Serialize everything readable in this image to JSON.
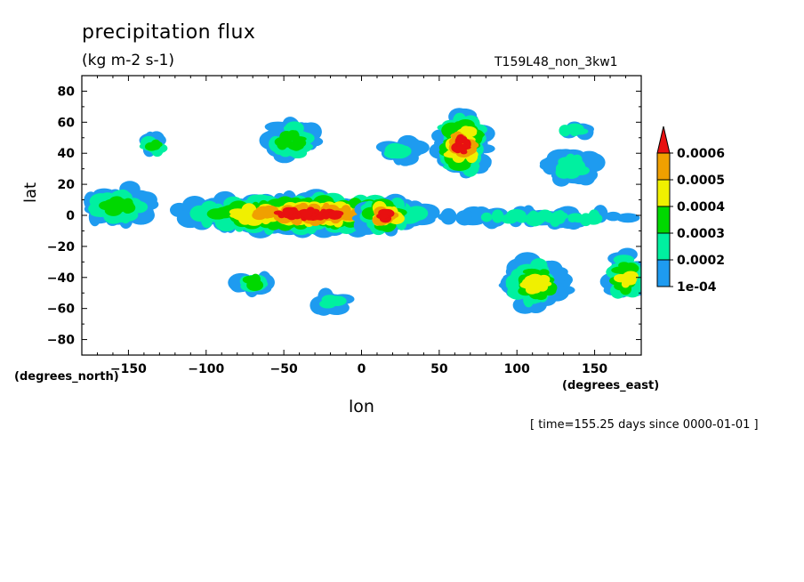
{
  "chart_data": {
    "type": "heatmap",
    "title": "precipitation flux",
    "subtitle": "(kg m-2 s-1)",
    "run_label": "T159L48_non_3kw1",
    "xlabel": "lon",
    "ylabel": "lat",
    "x_unit_label": "(degrees_east)",
    "y_unit_label": "(degrees_north)",
    "timestamp": "[ time=155.25 days since 0000-01-01 ]",
    "xlim": [
      -180,
      180
    ],
    "ylim": [
      -90,
      90
    ],
    "x_ticks": [
      -150,
      -100,
      -50,
      0,
      50,
      100,
      150
    ],
    "y_ticks": [
      80,
      60,
      40,
      20,
      0,
      -20,
      -40,
      -60,
      -80
    ],
    "legend_placement": "right",
    "colorbar": {
      "levels": [
        "1e-04",
        "0.0002",
        "0.0003",
        "0.0004",
        "0.0005",
        "0.0006"
      ],
      "colors": [
        "#1e9bf0",
        "#00f0a0",
        "#00d800",
        "#f0f000",
        "#f0a000",
        "#e81010"
      ]
    },
    "features": [
      {
        "lon_min": -180,
        "lon_max": -135,
        "lat_min": -4,
        "lat_max": 18,
        "level": 3
      },
      {
        "lon_min": -120,
        "lon_max": 50,
        "lat_min": -10,
        "lat_max": 12,
        "level": 6
      },
      {
        "lon_min": 0,
        "lon_max": 30,
        "lat_min": -10,
        "lat_max": 10,
        "level": 6
      },
      {
        "lon_min": 50,
        "lon_max": 180,
        "lat_min": -5,
        "lat_max": 2,
        "level": 2
      },
      {
        "lon_min": 50,
        "lon_max": 80,
        "lat_min": 25,
        "lat_max": 65,
        "level": 6
      },
      {
        "lon_min": -60,
        "lon_max": -30,
        "lat_min": 35,
        "lat_max": 60,
        "level": 3
      },
      {
        "lon_min": 15,
        "lon_max": 35,
        "lat_min": 35,
        "lat_max": 50,
        "level": 2
      },
      {
        "lon_min": -140,
        "lon_max": -125,
        "lat_min": 40,
        "lat_max": 50,
        "level": 3
      },
      {
        "lon_min": 95,
        "lon_max": 130,
        "lat_min": -60,
        "lat_max": -28,
        "level": 4
      },
      {
        "lon_min": 160,
        "lon_max": 180,
        "lat_min": -55,
        "lat_max": -25,
        "level": 4
      },
      {
        "lon_min": -30,
        "lon_max": -10,
        "lat_min": -60,
        "lat_max": -52,
        "level": 2
      },
      {
        "lon_min": -80,
        "lon_max": -60,
        "lat_min": -48,
        "lat_max": -38,
        "level": 3
      },
      {
        "lon_min": 120,
        "lon_max": 150,
        "lat_min": 22,
        "lat_max": 40,
        "level": 2
      },
      {
        "lon_min": 125,
        "lon_max": 150,
        "lat_min": 52,
        "lat_max": 58,
        "level": 2
      }
    ]
  }
}
